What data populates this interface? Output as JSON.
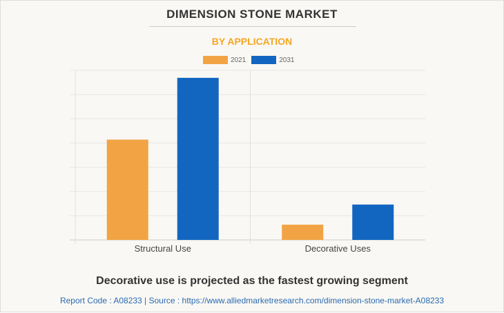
{
  "title": "DIMENSION STONE MARKET",
  "subtitle": "BY APPLICATION",
  "footer": "Decorative use is projected as the fastest growing segment",
  "source": "Report Code : A08233  |  Source : https://www.alliedmarketresearch.com/dimension-stone-market-A08233",
  "chart_data": {
    "type": "bar",
    "categories": [
      "Structural Use",
      "Decorative Uses"
    ],
    "series": [
      {
        "name": "2021",
        "color": "#f2a444",
        "values": [
          4.14,
          0.63
        ]
      },
      {
        "name": "2031",
        "color": "#1266c0",
        "values": [
          6.69,
          1.46
        ]
      }
    ],
    "ylim": [
      0,
      7
    ],
    "grid": true,
    "legend": "top-center",
    "xlabel": "",
    "ylabel": ""
  }
}
